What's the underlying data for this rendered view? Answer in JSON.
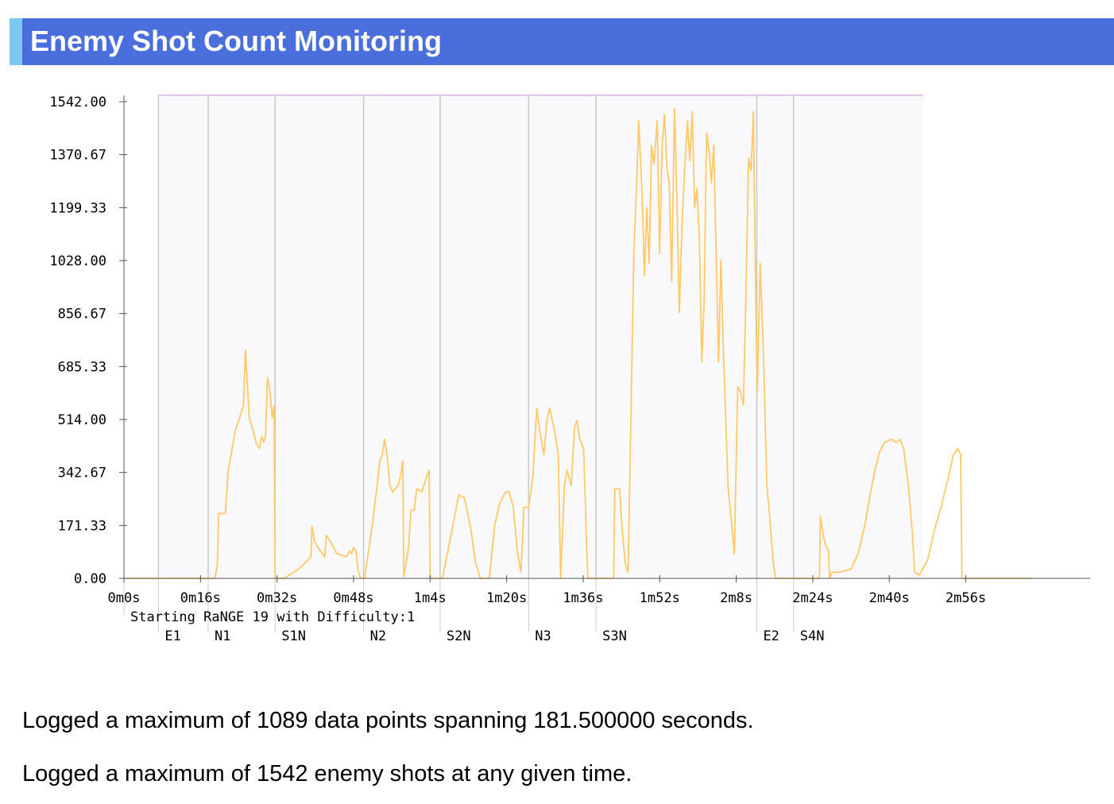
{
  "header": {
    "title": "Enemy Shot Count Monitoring"
  },
  "colors": {
    "header_bg": "#4a6fdc",
    "header_accent": "#7dc8f0",
    "series": "#ffc965",
    "plot_bg": "#f9f8fb",
    "plot_top_line": "#dcb4e6",
    "marker_line": "#c8c8c8",
    "axis": "#555555"
  },
  "chart_data": {
    "type": "line",
    "title": "",
    "xlabel": "",
    "ylabel": "",
    "xlim": [
      0,
      188
    ],
    "ylim": [
      0,
      1542
    ],
    "y_ticks": [
      "1542.00",
      "1370.67",
      "1199.33",
      "1028.00",
      "856.67",
      "685.33",
      "514.00",
      "342.67",
      "171.33",
      "0.00"
    ],
    "y_tick_values": [
      1542,
      1370.67,
      1199.33,
      1028,
      856.67,
      685.33,
      514,
      342.67,
      171.33,
      0
    ],
    "x_ticks": [
      "0m0s",
      "0m16s",
      "0m32s",
      "0m48s",
      "1m4s",
      "1m20s",
      "1m36s",
      "1m52s",
      "2m8s",
      "2m24s",
      "2m40s",
      "2m56s"
    ],
    "x_tick_values": [
      0,
      16,
      32,
      48,
      64,
      80,
      96,
      112,
      128,
      144,
      160,
      176
    ],
    "shaded_range": [
      7.2,
      167.1
    ],
    "start_annotation": {
      "t": 0,
      "label": "Starting RaNGE 19 with Difficulty:1"
    },
    "markers": [
      {
        "t": 7.2,
        "label": "E1"
      },
      {
        "t": 17.6,
        "label": "N1"
      },
      {
        "t": 31.6,
        "label": "S1N"
      },
      {
        "t": 50.1,
        "label": "N2"
      },
      {
        "t": 66.1,
        "label": "S2N"
      },
      {
        "t": 84.6,
        "label": "N3"
      },
      {
        "t": 98.7,
        "label": "S3N"
      },
      {
        "t": 132.3,
        "label": "E2"
      },
      {
        "t": 140.0,
        "label": "S4N"
      }
    ],
    "series": [
      {
        "values": [
          [
            0,
            0
          ],
          [
            19.0,
            0
          ],
          [
            19.5,
            40
          ],
          [
            19.8,
            210
          ],
          [
            21.2,
            210
          ],
          [
            21.8,
            350
          ],
          [
            22.4,
            400
          ],
          [
            23.3,
            480
          ],
          [
            24.2,
            520
          ],
          [
            25.0,
            560
          ],
          [
            25.4,
            740
          ],
          [
            26.2,
            520
          ],
          [
            27.0,
            480
          ],
          [
            27.6,
            440
          ],
          [
            28.3,
            420
          ],
          [
            28.8,
            460
          ],
          [
            29.2,
            440
          ],
          [
            29.6,
            460
          ],
          [
            30.0,
            650
          ],
          [
            30.5,
            610
          ],
          [
            31.0,
            520
          ],
          [
            31.4,
            560
          ],
          [
            31.6,
            0
          ],
          [
            33.5,
            0
          ],
          [
            36.5,
            30
          ],
          [
            38.5,
            60
          ],
          [
            39.1,
            70
          ],
          [
            39.3,
            170
          ],
          [
            39.8,
            120
          ],
          [
            41.0,
            90
          ],
          [
            42.0,
            70
          ],
          [
            42.3,
            140
          ],
          [
            43.5,
            110
          ],
          [
            44.5,
            80
          ],
          [
            46.5,
            70
          ],
          [
            47.2,
            90
          ],
          [
            47.6,
            80
          ],
          [
            48.0,
            100
          ],
          [
            48.5,
            90
          ],
          [
            49.0,
            20
          ],
          [
            49.5,
            0
          ],
          [
            50.3,
            0
          ],
          [
            52.0,
            180
          ],
          [
            53.5,
            380
          ],
          [
            54.0,
            400
          ],
          [
            54.5,
            450
          ],
          [
            55.0,
            400
          ],
          [
            55.6,
            300
          ],
          [
            56.2,
            280
          ],
          [
            57.3,
            300
          ],
          [
            57.8,
            330
          ],
          [
            58.3,
            380
          ],
          [
            58.5,
            5
          ],
          [
            59.5,
            100
          ],
          [
            60.0,
            220
          ],
          [
            60.7,
            220
          ],
          [
            61.2,
            290
          ],
          [
            62.3,
            280
          ],
          [
            63.1,
            320
          ],
          [
            63.8,
            350
          ],
          [
            64.0,
            0
          ],
          [
            66.6,
            0
          ],
          [
            68.5,
            150
          ],
          [
            70.0,
            270
          ],
          [
            71.2,
            260
          ],
          [
            72.5,
            160
          ],
          [
            73.5,
            50
          ],
          [
            74.5,
            0
          ],
          [
            76.4,
            0
          ],
          [
            77.5,
            170
          ],
          [
            78.5,
            240
          ],
          [
            79.8,
            280
          ],
          [
            80.5,
            280
          ],
          [
            81.4,
            230
          ],
          [
            82.3,
            80
          ],
          [
            83.0,
            20
          ],
          [
            83.6,
            230
          ],
          [
            84.6,
            230
          ],
          [
            85.5,
            330
          ],
          [
            86.3,
            550
          ],
          [
            87.0,
            470
          ],
          [
            87.8,
            400
          ],
          [
            88.5,
            520
          ],
          [
            89.0,
            550
          ],
          [
            90.0,
            480
          ],
          [
            90.8,
            400
          ],
          [
            91.3,
            0
          ],
          [
            92.1,
            300
          ],
          [
            92.6,
            350
          ],
          [
            93.0,
            330
          ],
          [
            93.5,
            300
          ],
          [
            94.2,
            490
          ],
          [
            94.7,
            510
          ],
          [
            95.3,
            450
          ],
          [
            96.1,
            420
          ],
          [
            96.7,
            120
          ],
          [
            97.0,
            0
          ],
          [
            99.7,
            0
          ],
          [
            102.4,
            0
          ],
          [
            102.6,
            290
          ],
          [
            103.6,
            290
          ],
          [
            104.2,
            150
          ],
          [
            104.8,
            50
          ],
          [
            105.4,
            20
          ],
          [
            106.2,
            700
          ],
          [
            106.6,
            1050
          ],
          [
            107.2,
            1280
          ],
          [
            107.6,
            1480
          ],
          [
            108.3,
            1250
          ],
          [
            108.8,
            980
          ],
          [
            109.3,
            1200
          ],
          [
            109.8,
            1020
          ],
          [
            110.3,
            1400
          ],
          [
            110.8,
            1340
          ],
          [
            111.5,
            1480
          ],
          [
            112.0,
            1050
          ],
          [
            112.5,
            1400
          ],
          [
            113.0,
            1500
          ],
          [
            113.5,
            1330
          ],
          [
            114.0,
            1280
          ],
          [
            114.5,
            960
          ],
          [
            115.1,
            1520
          ],
          [
            115.6,
            1230
          ],
          [
            116.1,
            860
          ],
          [
            116.7,
            1150
          ],
          [
            117.2,
            1320
          ],
          [
            117.8,
            1480
          ],
          [
            118.3,
            1350
          ],
          [
            118.8,
            1510
          ],
          [
            119.3,
            1200
          ],
          [
            119.8,
            1260
          ],
          [
            120.3,
            1100
          ],
          [
            120.8,
            700
          ],
          [
            121.3,
            900
          ],
          [
            121.8,
            1440
          ],
          [
            122.3,
            1390
          ],
          [
            122.8,
            1280
          ],
          [
            123.3,
            1400
          ],
          [
            123.8,
            1050
          ],
          [
            124.3,
            700
          ],
          [
            124.8,
            1030
          ],
          [
            125.2,
            800
          ],
          [
            125.7,
            560
          ],
          [
            126.3,
            300
          ],
          [
            127.2,
            150
          ],
          [
            127.6,
            80
          ],
          [
            128.3,
            620
          ],
          [
            129.0,
            600
          ],
          [
            129.5,
            560
          ],
          [
            130.0,
            900
          ],
          [
            130.6,
            1360
          ],
          [
            131.1,
            1320
          ],
          [
            131.6,
            1510
          ],
          [
            132.0,
            1000
          ],
          [
            132.4,
            600
          ],
          [
            133.0,
            1020
          ],
          [
            133.7,
            720
          ],
          [
            134.4,
            300
          ],
          [
            135.0,
            200
          ],
          [
            135.7,
            60
          ],
          [
            136.2,
            0
          ],
          [
            145.4,
            0
          ],
          [
            145.6,
            200
          ],
          [
            146.3,
            130
          ],
          [
            146.9,
            100
          ],
          [
            147.3,
            90
          ],
          [
            147.5,
            0
          ],
          [
            148.0,
            20
          ],
          [
            149.5,
            20
          ],
          [
            152.0,
            30
          ],
          [
            153.5,
            80
          ],
          [
            155.0,
            180
          ],
          [
            156.0,
            270
          ],
          [
            157.0,
            350
          ],
          [
            158.0,
            410
          ],
          [
            159.0,
            440
          ],
          [
            160.5,
            450
          ],
          [
            161.5,
            440
          ],
          [
            162.2,
            450
          ],
          [
            163.0,
            420
          ],
          [
            164.0,
            300
          ],
          [
            164.8,
            150
          ],
          [
            165.3,
            20
          ],
          [
            166.3,
            10
          ],
          [
            168.0,
            60
          ],
          [
            169.5,
            160
          ],
          [
            171.0,
            240
          ],
          [
            172.4,
            330
          ],
          [
            173.4,
            400
          ],
          [
            174.3,
            420
          ],
          [
            174.9,
            400
          ],
          [
            175.2,
            0
          ],
          [
            190.0,
            0
          ]
        ]
      }
    ]
  },
  "summary": {
    "line1": "Logged a maximum of 1089 data points spanning 181.500000 seconds.",
    "line2": "Logged a maximum of 1542 enemy shots at any given time."
  }
}
